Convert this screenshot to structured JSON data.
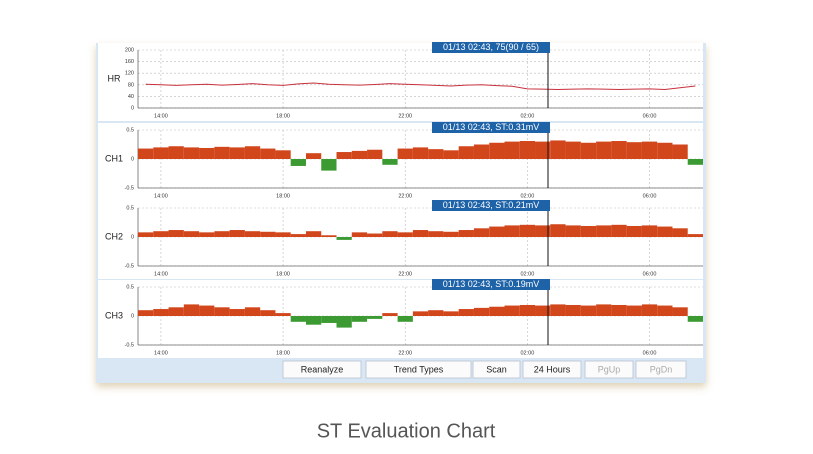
{
  "chart_data": [
    {
      "type": "line",
      "label": "HR",
      "cursor_label": "01/13 02:43, 75(90 / 65)",
      "color": "#c8303e",
      "grid": true,
      "categories": [
        null,
        "14:00",
        null,
        null,
        null,
        null,
        null,
        null,
        null,
        "18:00",
        null,
        null,
        null,
        null,
        null,
        null,
        null,
        "22:00",
        null,
        null,
        null,
        null,
        null,
        null,
        null,
        "02:00",
        null,
        null,
        null,
        null,
        null,
        null,
        null,
        "06:00",
        null,
        null,
        null
      ],
      "values": [
        82,
        80,
        78,
        80,
        82,
        79,
        81,
        84,
        80,
        78,
        83,
        86,
        82,
        80,
        79,
        81,
        84,
        82,
        80,
        78,
        76,
        79,
        80,
        77,
        75,
        66,
        65,
        64,
        65,
        66,
        65,
        64,
        65,
        66,
        64,
        70,
        76
      ],
      "ylim": [
        0,
        200
      ],
      "yticks": [
        0,
        40,
        80,
        120,
        160,
        200
      ]
    },
    {
      "type": "bar",
      "label": "CH1",
      "cursor_label": "01/13 02:43, ST:0.31mV",
      "color": "#d2461c",
      "negative_color": "#3c9a32",
      "grid": true,
      "categories": [
        null,
        "14:00",
        null,
        null,
        null,
        null,
        null,
        null,
        null,
        "18:00",
        null,
        null,
        null,
        null,
        null,
        null,
        null,
        "22:00",
        null,
        null,
        null,
        null,
        null,
        null,
        null,
        "02:00",
        null,
        null,
        null,
        null,
        null,
        null,
        null,
        "06:00",
        null,
        null,
        null
      ],
      "values": [
        0.18,
        0.2,
        0.22,
        0.2,
        0.19,
        0.21,
        0.2,
        0.22,
        0.18,
        0.15,
        -0.12,
        0.1,
        -0.2,
        0.12,
        0.14,
        0.16,
        -0.1,
        0.18,
        0.2,
        0.17,
        0.15,
        0.22,
        0.25,
        0.28,
        0.3,
        0.31,
        0.3,
        0.32,
        0.3,
        0.28,
        0.3,
        0.31,
        0.29,
        0.3,
        0.28,
        0.25,
        -0.1
      ],
      "ylim": [
        -0.5,
        0.5
      ],
      "yticks": [
        -0.5,
        0,
        0.5
      ]
    },
    {
      "type": "bar",
      "label": "CH2",
      "cursor_label": "01/13 02:43, ST:0.21mV",
      "color": "#d2461c",
      "negative_color": "#3c9a32",
      "grid": true,
      "categories": [
        null,
        "14:00",
        null,
        null,
        null,
        null,
        null,
        null,
        null,
        "18:00",
        null,
        null,
        null,
        null,
        null,
        null,
        null,
        "22:00",
        null,
        null,
        null,
        null,
        null,
        null,
        null,
        "02:00",
        null,
        null,
        null,
        null,
        null,
        null,
        null,
        "06:00",
        null,
        null,
        null
      ],
      "values": [
        0.08,
        0.1,
        0.12,
        0.1,
        0.08,
        0.1,
        0.12,
        0.1,
        0.09,
        0.08,
        0.05,
        0.1,
        0.03,
        -0.05,
        0.08,
        0.06,
        0.1,
        0.08,
        0.12,
        0.1,
        0.09,
        0.12,
        0.15,
        0.18,
        0.2,
        0.21,
        0.2,
        0.22,
        0.2,
        0.19,
        0.2,
        0.21,
        0.19,
        0.2,
        0.18,
        0.15,
        0.05
      ],
      "ylim": [
        -0.5,
        0.5
      ],
      "yticks": [
        -0.5,
        0,
        0.5
      ]
    },
    {
      "type": "bar",
      "label": "CH3",
      "cursor_label": "01/13 02:43, ST:0.19mV",
      "color": "#d2461c",
      "negative_color": "#3c9a32",
      "grid": true,
      "categories": [
        null,
        "14:00",
        null,
        null,
        null,
        null,
        null,
        null,
        null,
        "18:00",
        null,
        null,
        null,
        null,
        null,
        null,
        null,
        "22:00",
        null,
        null,
        null,
        null,
        null,
        null,
        null,
        "02:00",
        null,
        null,
        null,
        null,
        null,
        null,
        null,
        "06:00",
        null,
        null,
        null
      ],
      "values": [
        0.1,
        0.12,
        0.15,
        0.2,
        0.18,
        0.15,
        0.12,
        0.15,
        0.1,
        0.05,
        -0.1,
        -0.15,
        -0.12,
        -0.2,
        -0.1,
        -0.05,
        0.05,
        -0.1,
        0.08,
        0.1,
        0.08,
        0.12,
        0.14,
        0.16,
        0.18,
        0.19,
        0.18,
        0.2,
        0.19,
        0.18,
        0.2,
        0.19,
        0.18,
        0.2,
        0.18,
        0.15,
        -0.1
      ],
      "ylim": [
        -0.5,
        0.5
      ],
      "yticks": [
        -0.5,
        0,
        0.5
      ]
    }
  ],
  "buttons": [
    {
      "label": "Reanalyze",
      "enabled": true
    },
    {
      "label": "Trend Types",
      "enabled": true
    },
    {
      "label": "Scan",
      "enabled": true
    },
    {
      "label": "24 Hours",
      "enabled": true
    },
    {
      "label": "PgUp",
      "enabled": false
    },
    {
      "label": "PgDn",
      "enabled": false
    }
  ],
  "caption": "ST Evaluation Chart"
}
